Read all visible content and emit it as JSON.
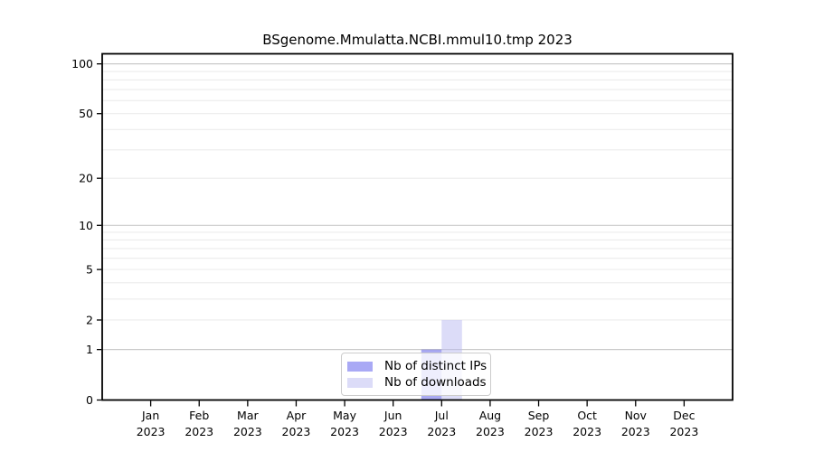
{
  "title": "BSgenome.Mmulatta.NCBI.mmul10.tmp 2023",
  "chart_data": {
    "type": "bar",
    "title": "BSgenome.Mmulatta.NCBI.mmul10.tmp 2023",
    "x_categories": [
      {
        "month": "Jan",
        "year": "2023"
      },
      {
        "month": "Feb",
        "year": "2023"
      },
      {
        "month": "Mar",
        "year": "2023"
      },
      {
        "month": "Apr",
        "year": "2023"
      },
      {
        "month": "May",
        "year": "2023"
      },
      {
        "month": "Jun",
        "year": "2023"
      },
      {
        "month": "Jul",
        "year": "2023"
      },
      {
        "month": "Aug",
        "year": "2023"
      },
      {
        "month": "Sep",
        "year": "2023"
      },
      {
        "month": "Oct",
        "year": "2023"
      },
      {
        "month": "Nov",
        "year": "2023"
      },
      {
        "month": "Dec",
        "year": "2023"
      }
    ],
    "series": [
      {
        "name": "Nb of distinct IPs",
        "swatch_color": "#a9a9f5",
        "bar_fill": "#5353e6",
        "bar_opacity": 0.5,
        "values": [
          0,
          0,
          0,
          0,
          0,
          0,
          1,
          0,
          0,
          0,
          0,
          0
        ]
      },
      {
        "name": "Nb of downloads",
        "swatch_color": "#dcdcf8",
        "bar_fill": "#b9b9f1",
        "bar_opacity": 0.5,
        "values": [
          0,
          0,
          0,
          0,
          0,
          0,
          2,
          0,
          0,
          0,
          0,
          0
        ]
      }
    ],
    "y_axis": {
      "scale": "log1p",
      "ticks": [
        0,
        1,
        2,
        5,
        10,
        20,
        50,
        100
      ],
      "ylim": [
        0,
        115
      ],
      "gridlines_minor": [
        2,
        3,
        4,
        5,
        6,
        7,
        8,
        9,
        20,
        30,
        40,
        50,
        60,
        70,
        80,
        90
      ],
      "gridlines_major": [
        1,
        10,
        100
      ],
      "minor_color": "#ececec",
      "major_color": "#c9c9c9"
    },
    "legend": {
      "position": "inside-bottom-center"
    },
    "grid": "on",
    "xlabel": "",
    "ylabel": ""
  }
}
